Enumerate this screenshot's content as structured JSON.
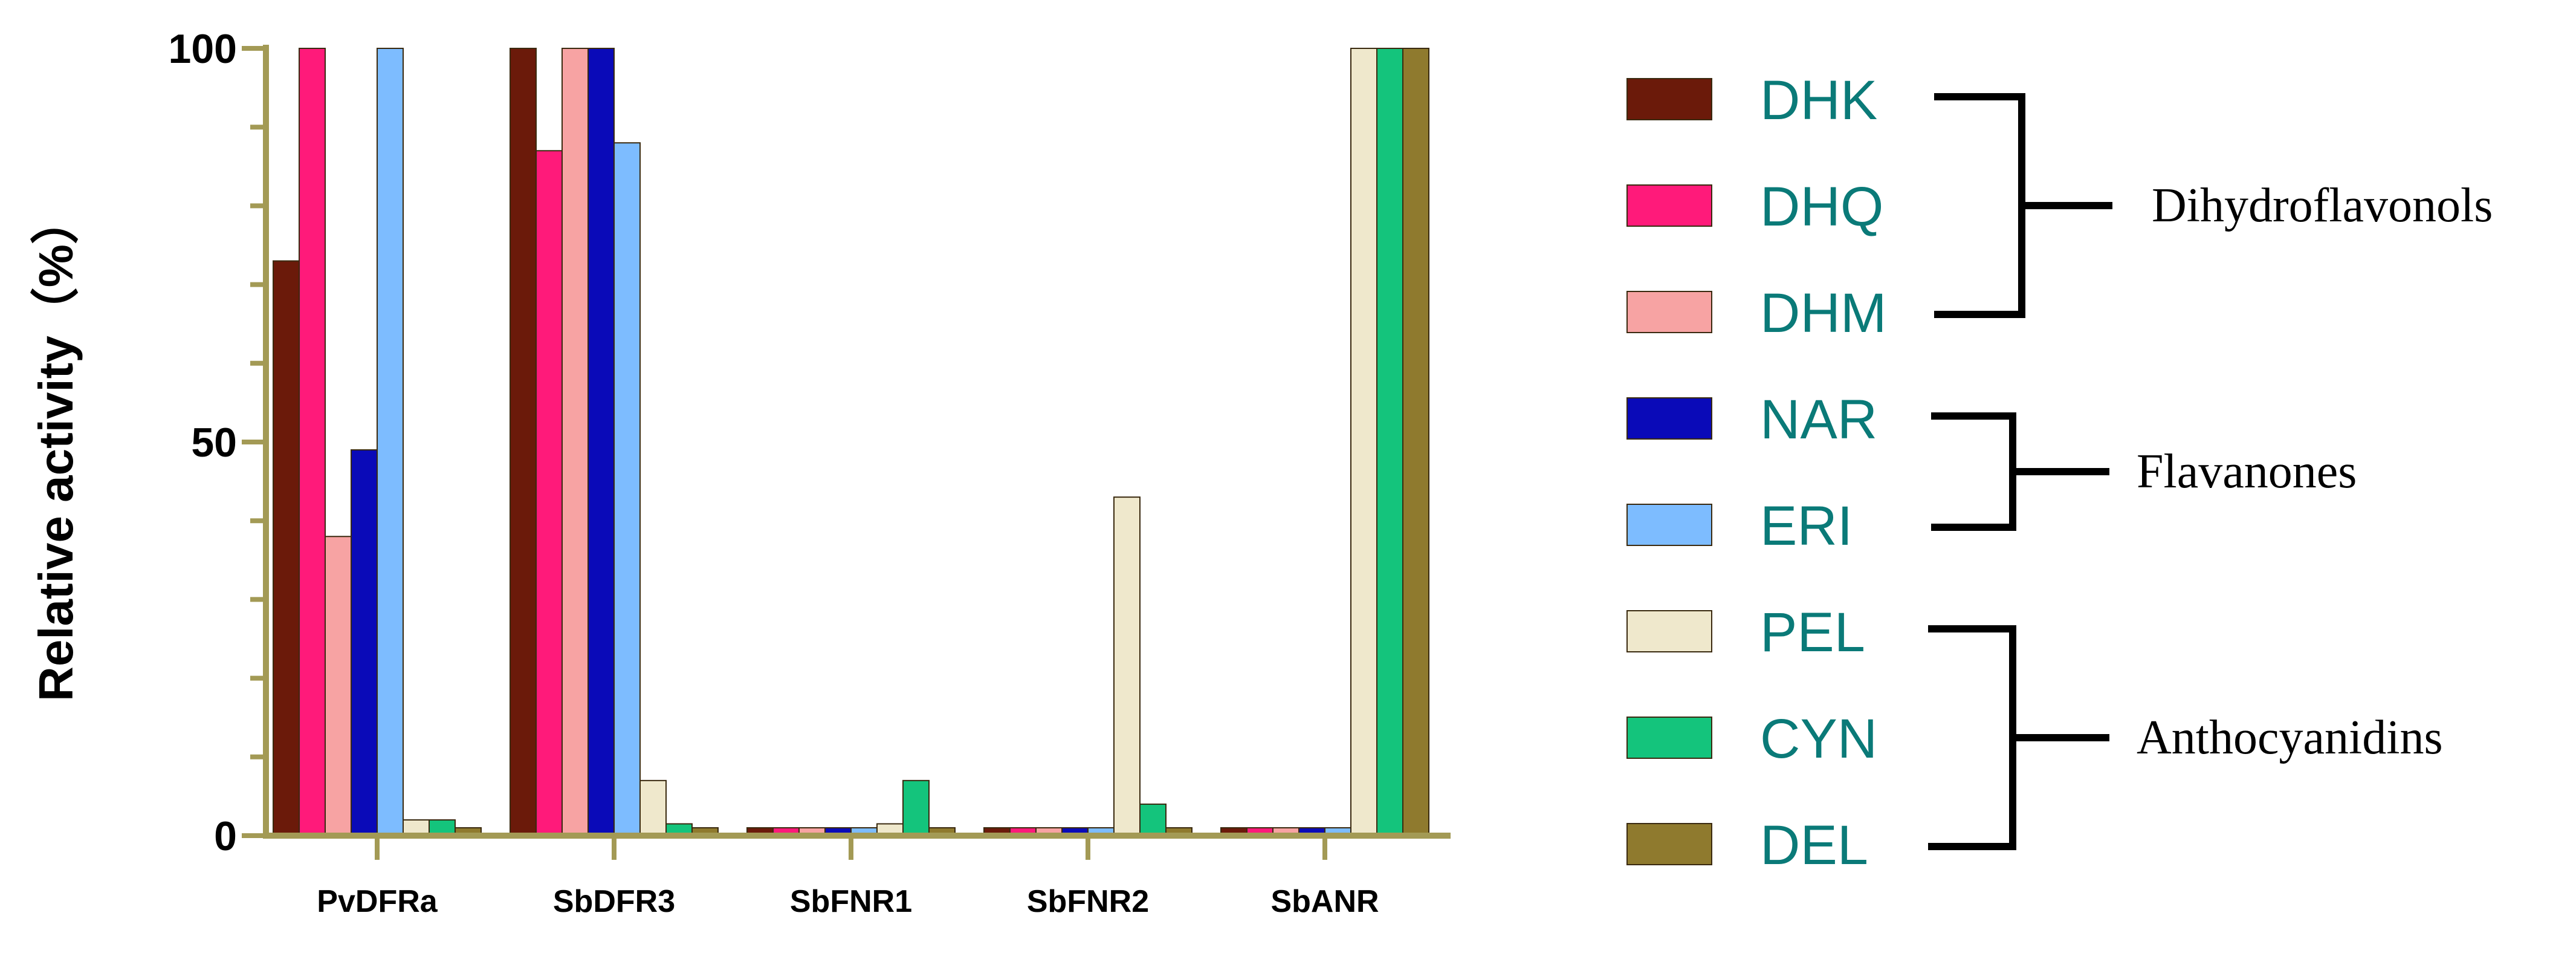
{
  "chart_data": {
    "type": "bar",
    "title": "",
    "xlabel": "",
    "ylabel": "Relative activity（%）",
    "ylim": [
      0,
      100
    ],
    "yticks": [
      0,
      50,
      100
    ],
    "categories": [
      "PvDFRa",
      "SbDFR3",
      "SbFNR1",
      "SbFNR2",
      "SbANR"
    ],
    "series": [
      {
        "name": "DHK",
        "color": "#6b1a0a",
        "values": [
          73,
          100,
          1,
          1,
          1
        ]
      },
      {
        "name": "DHQ",
        "color": "#ff1a7a",
        "values": [
          100,
          87,
          1,
          1,
          1
        ]
      },
      {
        "name": "DHM",
        "color": "#f7a3a3",
        "values": [
          38,
          100,
          1,
          1,
          1
        ]
      },
      {
        "name": "NAR",
        "color": "#0a0ab8",
        "values": [
          49,
          100,
          1,
          1,
          1
        ]
      },
      {
        "name": "ERI",
        "color": "#7dbcff",
        "values": [
          100,
          88,
          1,
          1,
          1
        ]
      },
      {
        "name": "PEL",
        "color": "#efe8cc",
        "values": [
          2,
          7,
          1.5,
          43,
          100
        ]
      },
      {
        "name": "CYN",
        "color": "#14c47c",
        "values": [
          2,
          1.5,
          7,
          4,
          100
        ]
      },
      {
        "name": "DEL",
        "color": "#8f7a2e",
        "values": [
          1,
          1,
          1,
          1,
          100
        ]
      }
    ],
    "groups": [
      {
        "label": "Dihydroflavonols",
        "members": [
          "DHK",
          "DHQ",
          "DHM"
        ]
      },
      {
        "label": "Flavanones",
        "members": [
          "NAR",
          "ERI"
        ]
      },
      {
        "label": "Anthocyanidins",
        "members": [
          "PEL",
          "CYN",
          "DEL"
        ]
      }
    ],
    "grid": false,
    "legend_position": "right",
    "axis_color": "#a39a55"
  }
}
